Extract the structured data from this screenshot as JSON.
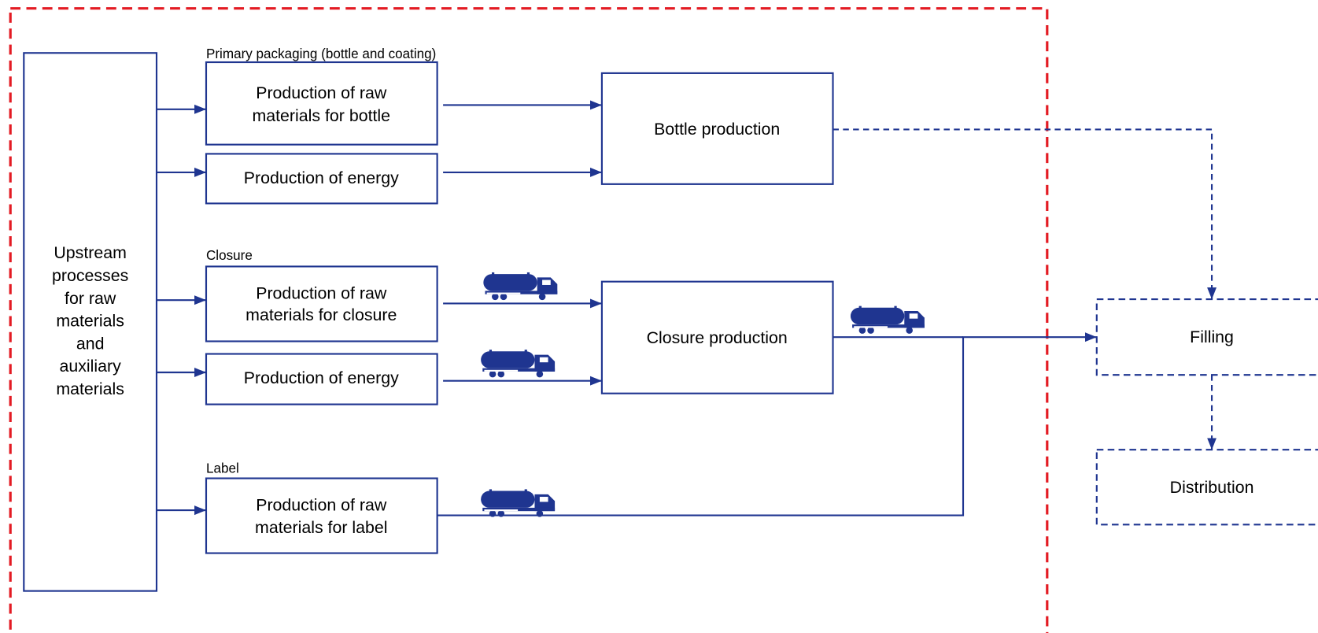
{
  "groups": [
    {
      "label": "Primary packaging (bottle and coating)"
    },
    {
      "label": "Closure"
    },
    {
      "label": "Label"
    }
  ],
  "nodes": [
    {
      "id": "upstream",
      "lines": [
        "Upstream",
        "processes",
        "for raw",
        "materials",
        "and",
        "auxiliary",
        "materials"
      ]
    },
    {
      "id": "raw-bottle",
      "lines": [
        "Production of raw",
        "materials for bottle"
      ]
    },
    {
      "id": "energy-1",
      "lines": [
        "Production of energy"
      ]
    },
    {
      "id": "bottle",
      "lines": [
        "Bottle production"
      ]
    },
    {
      "id": "raw-closure",
      "lines": [
        "Production of raw",
        "materials for closure"
      ]
    },
    {
      "id": "energy-2",
      "lines": [
        "Production of energy"
      ]
    },
    {
      "id": "closure",
      "lines": [
        "Closure production"
      ]
    },
    {
      "id": "raw-label",
      "lines": [
        "Production of raw",
        "materials for label"
      ]
    },
    {
      "id": "filling",
      "lines": [
        "Filling"
      ]
    },
    {
      "id": "distribution",
      "lines": [
        "Distribution"
      ]
    }
  ]
}
